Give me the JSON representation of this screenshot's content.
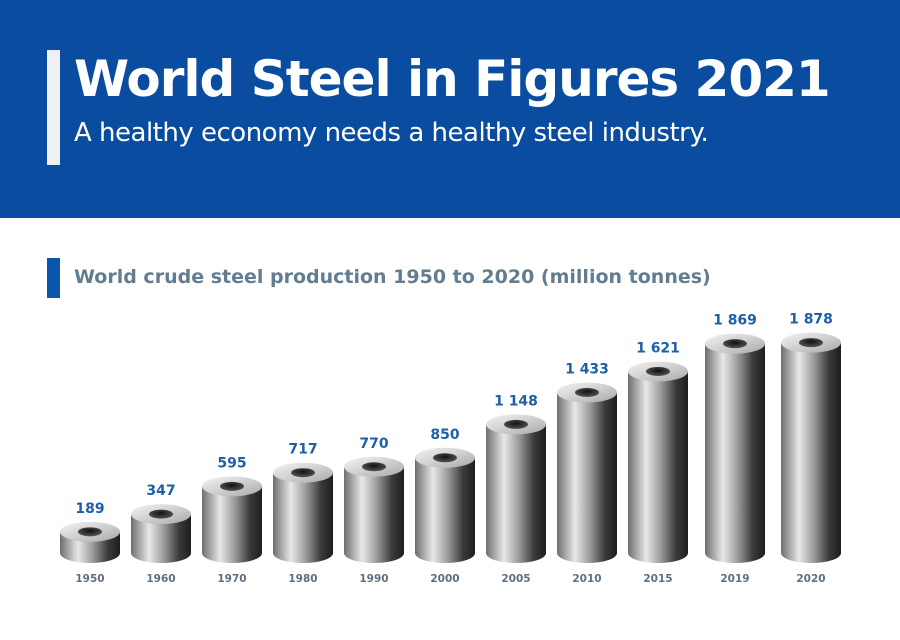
{
  "header": {
    "title": "World Steel in Figures 2021",
    "subtitle": "A healthy economy needs a healthy steel industry."
  },
  "colors": {
    "header_bg": "#0a4c9f",
    "value_label": "#1f5fa8",
    "year_label": "#5d6f80",
    "chart_title": "#627d91"
  },
  "chart_data": {
    "type": "bar",
    "style": "3d-cylinders",
    "title": "World crude steel production 1950 to 2020 (million tonnes)",
    "categories": [
      "1950",
      "1960",
      "1970",
      "1980",
      "1990",
      "2000",
      "2005",
      "2010",
      "2015",
      "2019",
      "2020"
    ],
    "values": [
      189,
      347,
      595,
      717,
      770,
      850,
      1148,
      1433,
      1621,
      1869,
      1878
    ],
    "value_labels": [
      "189",
      "347",
      "595",
      "717",
      "770",
      "850",
      "1 148",
      "1 433",
      "1 621",
      "1 869",
      "1 878"
    ],
    "xlabel": "",
    "ylabel": "",
    "grid": false
  }
}
